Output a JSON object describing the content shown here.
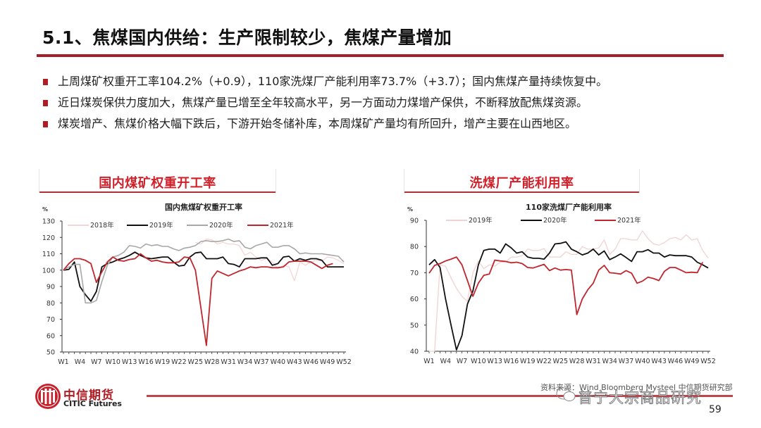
{
  "header": {
    "title": "5.1、焦煤国内供给：生产限制较少，焦煤产量增加"
  },
  "bullets": [
    "上周煤矿权重开工率104.2%（+0.9），110家洗煤厂产能利用率73.7%（+3.7）；国内焦煤产量持续恢复中。",
    "近日煤炭保供力度加大，焦煤产量已增至全年较高水平，另一方面动力煤增产保供，不断释放配焦煤资源。",
    "煤炭增产、焦煤价格大幅下跌后，下游开始冬储补库，本周煤矿产量均有所回升，增产主要在山西地区。"
  ],
  "panels": {
    "left_header": "国内煤矿权重开工率",
    "right_header": "洗煤厂产能利用率"
  },
  "colors": {
    "accent_red": "#a3202a",
    "series_2018": "#f2d6d6",
    "series_2019_left": "#111111",
    "series_2020_left": "#a8a8a8",
    "series_2021": "#c0262e",
    "series_2019_right": "#efd3d3",
    "series_2020_right": "#111111"
  },
  "chart_data": [
    {
      "type": "line",
      "title": "国内焦煤矿权重开工率",
      "ylabel": "%",
      "xlabel": "",
      "ylim": [
        50,
        130
      ],
      "yticks": [
        50,
        60,
        70,
        80,
        90,
        100,
        110,
        120,
        130
      ],
      "xtick_labels": [
        "W1",
        "W4",
        "W7",
        "W10",
        "W13",
        "W16",
        "W19",
        "W22",
        "W25",
        "W28",
        "W31",
        "W34",
        "W37",
        "W40",
        "W43",
        "W46",
        "W49",
        "W52"
      ],
      "x": [
        "W1",
        "W2",
        "W3",
        "W4",
        "W5",
        "W6",
        "W7",
        "W8",
        "W9",
        "W10",
        "W11",
        "W12",
        "W13",
        "W14",
        "W15",
        "W16",
        "W17",
        "W18",
        "W19",
        "W20",
        "W21",
        "W22",
        "W23",
        "W24",
        "W25",
        "W26",
        "W27",
        "W28",
        "W29",
        "W30",
        "W31",
        "W32",
        "W33",
        "W34",
        "W35",
        "W36",
        "W37",
        "W38",
        "W39",
        "W40",
        "W41",
        "W42",
        "W43",
        "W44",
        "W45",
        "W46",
        "W47",
        "W48",
        "W49",
        "W50",
        "W51",
        "W52"
      ],
      "legend_position": "top",
      "grid": false,
      "series": [
        {
          "name": "2018年",
          "color": "#f2d6d6",
          "start_week": 25,
          "values": [
            117,
            116,
            119,
            118.5,
            116,
            117,
            116,
            116,
            115,
            109,
            111,
            108,
            106,
            107,
            105,
            101,
            103,
            102,
            93.5,
            105,
            103,
            105,
            106,
            105.5,
            108,
            107.5,
            106,
            104
          ]
        },
        {
          "name": "2019年",
          "color": "#111111",
          "start_week": 1,
          "values": [
            100,
            100.5,
            105,
            90,
            85,
            81,
            87,
            102,
            104,
            105,
            106.5,
            107.5,
            109,
            111,
            109,
            107.5,
            107,
            107.5,
            108,
            108,
            105,
            102.5,
            103,
            108,
            110.5,
            111,
            107,
            107,
            107,
            108,
            104,
            103.5,
            102,
            107,
            107,
            107,
            107.5,
            107.5,
            103,
            104,
            108,
            108.5,
            105.5,
            107,
            106,
            107,
            107,
            106,
            102,
            102,
            102,
            102
          ]
        },
        {
          "name": "2020年",
          "color": "#a8a8a8",
          "start_week": 1,
          "values": [
            100,
            102,
            103.5,
            103.5,
            80,
            80,
            81.5,
            93,
            103,
            108,
            109,
            111,
            115,
            114.5,
            113.5,
            116,
            115,
            115.5,
            114.5,
            114.5,
            113,
            112,
            113.5,
            114,
            115,
            117.5,
            118,
            117.5,
            117.5,
            118,
            119,
            117.5,
            118,
            114,
            113,
            115,
            116,
            117,
            114,
            114,
            115,
            115,
            113,
            110,
            110.5,
            110,
            110,
            110,
            109.5,
            109,
            108.5,
            105
          ]
        },
        {
          "name": "2021年",
          "color": "#c0262e",
          "start_week": 1,
          "values": [
            100,
            104,
            107,
            107,
            106,
            104,
            92.5,
            99,
            105,
            108,
            106,
            105.5,
            106.5,
            107,
            110,
            107.5,
            105.5,
            106,
            105,
            104.5,
            104.5,
            105,
            108,
            107.5,
            100,
            77,
            54,
            95,
            99.5,
            98,
            96.5,
            98,
            99.5,
            100.5,
            102,
            101.5,
            102,
            102,
            101.5,
            101.5,
            102,
            105,
            105.5,
            105.5,
            105.5,
            105,
            103,
            101,
            103,
            104
          ]
        }
      ]
    },
    {
      "type": "line",
      "title": "110家洗煤厂产能利用率",
      "ylabel": "%",
      "xlabel": "",
      "ylim": [
        40,
        90
      ],
      "yticks": [
        40,
        50,
        60,
        70,
        80,
        90
      ],
      "xtick_labels": [
        "W1",
        "W4",
        "W7",
        "W10",
        "W13",
        "W16",
        "W19",
        "W22",
        "W25",
        "W28",
        "W31",
        "W34",
        "W37",
        "W40",
        "W43",
        "W46",
        "W49",
        "W52"
      ],
      "x": [
        "W1",
        "W2",
        "W3",
        "W4",
        "W5",
        "W6",
        "W7",
        "W8",
        "W9",
        "W10",
        "W11",
        "W12",
        "W13",
        "W14",
        "W15",
        "W16",
        "W17",
        "W18",
        "W19",
        "W20",
        "W21",
        "W22",
        "W23",
        "W24",
        "W25",
        "W26",
        "W27",
        "W28",
        "W29",
        "W30",
        "W31",
        "W32",
        "W33",
        "W34",
        "W35",
        "W36",
        "W37",
        "W38",
        "W39",
        "W40",
        "W41",
        "W42",
        "W43",
        "W44",
        "W45",
        "W46",
        "W47",
        "W48",
        "W49",
        "W50",
        "W51",
        "W52"
      ],
      "legend_position": "top",
      "grid": false,
      "series": [
        {
          "name": "2019年",
          "color": "#efd3d3",
          "start_week": 1,
          "values": [
            30,
            40,
            73,
            72.5,
            68,
            64,
            61,
            59,
            70,
            74.5,
            71.5,
            73,
            72.5,
            74,
            74,
            76,
            76,
            76.5,
            79,
            78.5,
            78.5,
            79.2,
            76,
            76,
            76,
            78,
            77,
            77,
            80,
            79,
            79,
            79.5,
            82.5,
            77,
            79,
            83,
            83,
            82.5,
            82.5,
            86,
            83,
            81,
            80.5,
            81.5,
            83,
            83.5,
            82.5,
            84.5,
            82.5,
            83,
            78.5,
            75.5
          ]
        },
        {
          "name": "2020年",
          "color": "#111111",
          "start_week": 1,
          "values": [
            73,
            75,
            72,
            60,
            50,
            40.5,
            46,
            58,
            63,
            73,
            78.5,
            79,
            79,
            77.5,
            81,
            79.5,
            77.5,
            78,
            76,
            75.5,
            75.5,
            75.2,
            77.5,
            81,
            81.2,
            81.8,
            79,
            78,
            76.8,
            77.5,
            79,
            76.8,
            78.3,
            75,
            76,
            77.2,
            75.8,
            74.3,
            78,
            78,
            78.8,
            77.5,
            77.5,
            76,
            76.8,
            76.5,
            76.5,
            76.5,
            76,
            74,
            73,
            71.8
          ]
        },
        {
          "name": "2021年",
          "color": "#c0262e",
          "start_week": 1,
          "values": [
            69.8,
            72.8,
            73.5,
            74.5,
            75.2,
            76,
            73,
            67,
            61,
            66,
            69,
            69.5,
            74.8,
            74.5,
            74.3,
            73.8,
            74,
            73.5,
            72,
            71.8,
            72.5,
            73.2,
            70.8,
            71.8,
            71,
            71.2,
            71,
            54,
            60,
            63.5,
            66,
            71,
            72.8,
            70,
            69.8,
            69.5,
            70.8,
            69.8,
            66,
            66.8,
            68.3,
            67.8,
            67,
            70.5,
            72,
            72,
            71,
            70,
            70.2,
            70,
            74
          ]
        }
      ]
    }
  ],
  "footer": {
    "logo_cn": "中信期货",
    "logo_en": "CITIC Futures",
    "source": "资料来源：Wind Bloomberg Mysteel 中信期货研究部",
    "watermark": "普宁大宗商品研究",
    "page_number": "59"
  }
}
